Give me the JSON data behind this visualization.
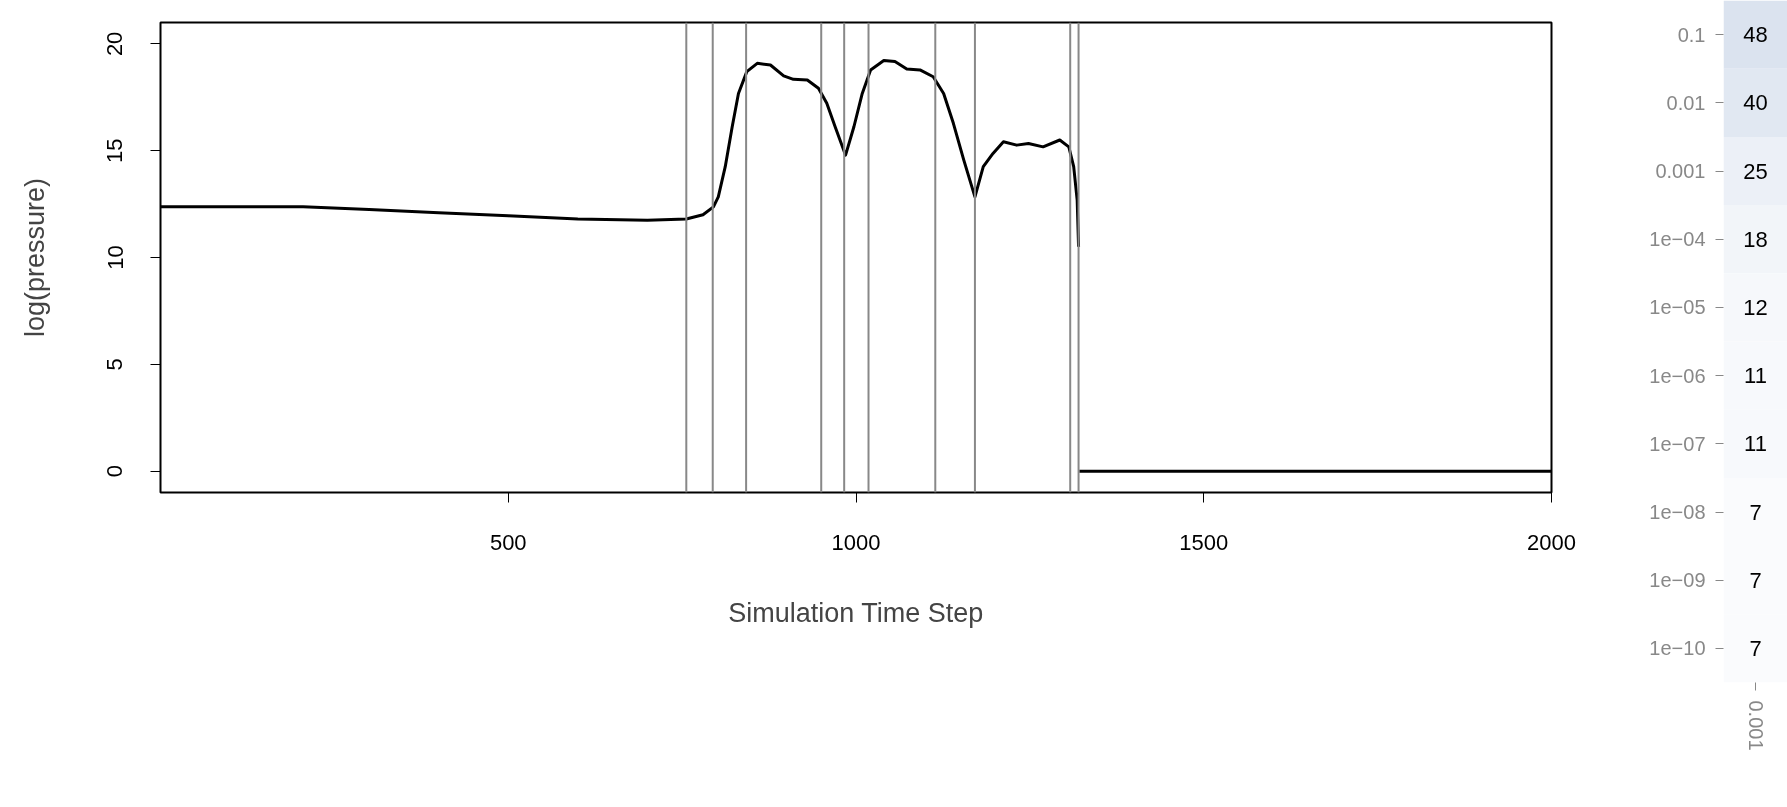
{
  "chart_data": [
    {
      "type": "line",
      "xlabel": "Simulation Time Step",
      "ylabel": "log(pressure)",
      "xlim": [
        0,
        2000
      ],
      "ylim": [
        -1,
        21
      ],
      "xticks": [
        500,
        1000,
        1500,
        2000
      ],
      "yticks": [
        0,
        5,
        10,
        15,
        20
      ],
      "grid": false,
      "line_style": "solid",
      "series": [
        {
          "color": "#000000",
          "x": [
            0,
            100,
            205,
            300,
            400,
            500,
            600,
            700,
            756,
            780,
            795,
            802,
            812,
            822,
            831,
            843,
            858,
            877,
            896,
            910,
            930,
            946,
            958,
            970,
            985,
            997,
            1009,
            1021,
            1040,
            1056,
            1073,
            1092,
            1111,
            1126,
            1140,
            1155,
            1171,
            1183,
            1197,
            1212,
            1231,
            1248,
            1269,
            1293,
            1306,
            1313,
            1318,
            1320,
            1320.5,
            1321,
            2000
          ],
          "values": [
            12.37,
            12.37,
            12.37,
            12.25,
            12.1,
            11.95,
            11.8,
            11.74,
            11.8,
            12.0,
            12.37,
            12.84,
            14.25,
            16.12,
            17.68,
            18.7,
            19.09,
            19.01,
            18.5,
            18.34,
            18.31,
            17.92,
            17.22,
            16.12,
            14.79,
            16.12,
            17.68,
            18.78,
            19.22,
            19.17,
            18.82,
            18.78,
            18.46,
            17.68,
            16.28,
            14.56,
            12.84,
            14.25,
            14.87,
            15.42,
            15.26,
            15.34,
            15.18,
            15.5,
            15.18,
            14.25,
            12.69,
            10.5,
            null,
            0,
            0
          ]
        }
      ],
      "ref_lines": [
        {
          "axis": "x",
          "value": 756,
          "color": "#888888"
        },
        {
          "axis": "x",
          "value": 794,
          "color": "#888888"
        },
        {
          "axis": "x",
          "value": 842,
          "color": "#888888"
        },
        {
          "axis": "x",
          "value": 950,
          "color": "#888888"
        },
        {
          "axis": "x",
          "value": 983,
          "color": "#888888"
        },
        {
          "axis": "x",
          "value": 1018,
          "color": "#888888"
        },
        {
          "axis": "x",
          "value": 1114,
          "color": "#888888"
        },
        {
          "axis": "x",
          "value": 1171,
          "color": "#888888"
        },
        {
          "axis": "x",
          "value": 1308,
          "color": "#888888"
        },
        {
          "axis": "x",
          "value": 1320,
          "color": "#888888"
        }
      ]
    },
    {
      "type": "heatmap",
      "categories": [
        "0.001"
      ],
      "y_categories": [
        "0.1",
        "0.01",
        "0.001",
        "1e−04",
        "1e−05",
        "1e−06",
        "1e−07",
        "1e−08",
        "1e−09",
        "1e−10"
      ],
      "cells": [
        [
          48
        ],
        [
          40
        ],
        [
          25
        ],
        [
          18
        ],
        [
          12
        ],
        [
          11
        ],
        [
          11
        ],
        [
          7
        ],
        [
          7
        ],
        [
          7
        ]
      ],
      "data_labels": true
    }
  ]
}
